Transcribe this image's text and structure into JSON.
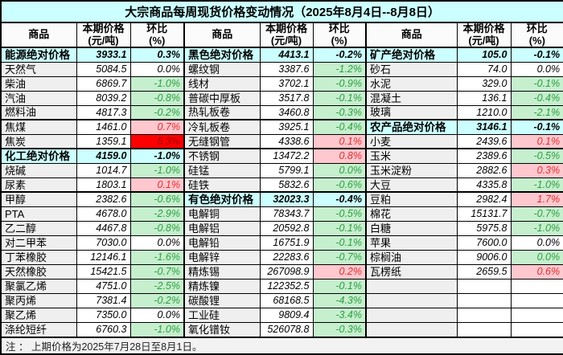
{
  "title": "大宗商品每周现货价格变动情况（2025年8月4日--8月8日）",
  "headers": {
    "commodity": "商品",
    "price": "本期价格\n(元/吨)",
    "change": "环比\n(%)"
  },
  "footer": {
    "note": "注 ： 上期价格为2025年7月28日至8月1日。"
  },
  "colors": {
    "title_bg": "#CCFFFF",
    "category_row_bg": "#CCFFFF",
    "name_cell_bg": "#EFEFEF",
    "decline_bg": "#C6EFCE",
    "decline_text": "#2E9E40",
    "rise_bg": "#FFC7CE",
    "rise_text": "#E03030",
    "surge_bg": "#FF0000",
    "surge_text": "#9C0006"
  },
  "groups": [
    {
      "name": "left",
      "rows": [
        {
          "name": "能源绝对价格",
          "price": "3933.1",
          "change": "0.3%",
          "type": "category"
        },
        {
          "name": "天然气",
          "price": "5084.5",
          "change": "0.0%",
          "type": "item",
          "trend": "flat"
        },
        {
          "name": "柴油",
          "price": "6869.7",
          "change": "-1.0%",
          "type": "item",
          "trend": "down"
        },
        {
          "name": "汽油",
          "price": "8039.2",
          "change": "-0.8%",
          "type": "item",
          "trend": "down"
        },
        {
          "name": "燃料油",
          "price": "4817.3",
          "change": "-0.2%",
          "type": "item",
          "trend": "down"
        },
        {
          "name": "焦煤",
          "price": "1461.0",
          "change": "0.7%",
          "type": "item",
          "trend": "up"
        },
        {
          "name": "焦炭",
          "price": "1359.1",
          "change": "5.3%",
          "type": "item",
          "trend": "surge"
        },
        {
          "name": "化工绝对价格",
          "price": "4159.0",
          "change": "-1.0%",
          "type": "category"
        },
        {
          "name": "烧碱",
          "price": "1014.7",
          "change": "-1.0%",
          "type": "item",
          "trend": "down"
        },
        {
          "name": "尿素",
          "price": "1803.1",
          "change": "0.1%",
          "type": "item",
          "trend": "up"
        },
        {
          "name": "甲醇",
          "price": "2382.6",
          "change": "-0.6%",
          "type": "item",
          "trend": "down"
        },
        {
          "name": "PTA",
          "price": "4678.0",
          "change": "-2.9%",
          "type": "item",
          "trend": "down"
        },
        {
          "name": "乙二醇",
          "price": "4467.8",
          "change": "-0.8%",
          "type": "item",
          "trend": "down"
        },
        {
          "name": "对二甲苯",
          "price": "7030.0",
          "change": "0.0%",
          "type": "item",
          "trend": "flat"
        },
        {
          "name": "丁苯橡胶",
          "price": "12146.1",
          "change": "-1.6%",
          "type": "item",
          "trend": "down"
        },
        {
          "name": "天然橡胶",
          "price": "15421.5",
          "change": "-0.7%",
          "type": "item",
          "trend": "down"
        },
        {
          "name": "聚氯乙烯",
          "price": "4751.0",
          "change": "-2.5%",
          "type": "item",
          "trend": "down"
        },
        {
          "name": "聚丙烯",
          "price": "7381.4",
          "change": "-0.2%",
          "type": "item",
          "trend": "down"
        },
        {
          "name": "聚乙烯",
          "price": "7350.0",
          "change": "0.0%",
          "type": "item",
          "trend": "flat"
        },
        {
          "name": "涤纶短纤",
          "price": "6760.3",
          "change": "-1.0%",
          "type": "item",
          "trend": "down"
        }
      ]
    },
    {
      "name": "middle",
      "rows": [
        {
          "name": "黑色绝对价格",
          "price": "4413.1",
          "change": "-0.2%",
          "type": "category"
        },
        {
          "name": "螺纹钢",
          "price": "3387.6",
          "change": "-1.2%",
          "type": "item",
          "trend": "down"
        },
        {
          "name": "线材",
          "price": "3702.1",
          "change": "-0.9%",
          "type": "item",
          "trend": "down"
        },
        {
          "name": "普碳中厚板",
          "price": "3517.8",
          "change": "-0.1%",
          "type": "item",
          "trend": "down"
        },
        {
          "name": "热轧板卷",
          "price": "3460.8",
          "change": "-0.3%",
          "type": "item",
          "trend": "down"
        },
        {
          "name": "冷轧板卷",
          "price": "3925.1",
          "change": "-0.4%",
          "type": "item",
          "trend": "down"
        },
        {
          "name": "无缝钢管",
          "price": "4338.6",
          "change": "0.1%",
          "type": "item",
          "trend": "up"
        },
        {
          "name": "不锈钢",
          "price": "13472.2",
          "change": "0.8%",
          "type": "item",
          "trend": "up"
        },
        {
          "name": "硅锰",
          "price": "5799.1",
          "change": "0.0%",
          "type": "item",
          "trend": "flat-green"
        },
        {
          "name": "硅铁",
          "price": "5832.6",
          "change": "-0.6%",
          "type": "item",
          "trend": "down"
        },
        {
          "name": "有色绝对价格",
          "price": "32023.3",
          "change": "-0.4%",
          "type": "category"
        },
        {
          "name": "电解铜",
          "price": "78343.7",
          "change": "-0.5%",
          "type": "item",
          "trend": "down"
        },
        {
          "name": "电解铝",
          "price": "20592.8",
          "change": "-0.1%",
          "type": "item",
          "trend": "down"
        },
        {
          "name": "电解铅",
          "price": "16751.9",
          "change": "-0.1%",
          "type": "item",
          "trend": "down"
        },
        {
          "name": "电解锌",
          "price": "22283.6",
          "change": "-0.7%",
          "type": "item",
          "trend": "down"
        },
        {
          "name": "精炼锡",
          "price": "267098.9",
          "change": "0.2%",
          "type": "item",
          "trend": "up"
        },
        {
          "name": "精炼镍",
          "price": "122352.5",
          "change": "-0.1%",
          "type": "item",
          "trend": "down"
        },
        {
          "name": "碳酸锂",
          "price": "68168.5",
          "change": "-4.3%",
          "type": "item",
          "trend": "down"
        },
        {
          "name": "工业硅",
          "price": "9809.4",
          "change": "-3.4%",
          "type": "item",
          "trend": "down"
        },
        {
          "name": "氧化镨钕",
          "price": "526078.8",
          "change": "-0.3%",
          "type": "item",
          "trend": "down"
        }
      ]
    },
    {
      "name": "right",
      "rows": [
        {
          "name": "矿产绝对价格",
          "price": "105.0",
          "change": "-0.1%",
          "type": "category"
        },
        {
          "name": "砂石",
          "price": "74.0",
          "change": "0.0%",
          "type": "item",
          "trend": "flat"
        },
        {
          "name": "水泥",
          "price": "329.0",
          "change": "-0.1%",
          "type": "item",
          "trend": "down"
        },
        {
          "name": "混凝土",
          "price": "136.1",
          "change": "-0.4%",
          "type": "item",
          "trend": "down"
        },
        {
          "name": "玻璃",
          "price": "1210.0",
          "change": "-2.1%",
          "type": "item",
          "trend": "down"
        },
        {
          "name": "农产品绝对价格",
          "price": "3146.1",
          "change": "-0.1%",
          "type": "category"
        },
        {
          "name": "小麦",
          "price": "2439.6",
          "change": "0.1%",
          "type": "item",
          "trend": "up"
        },
        {
          "name": "玉米",
          "price": "2389.6",
          "change": "-0.5%",
          "type": "item",
          "trend": "down"
        },
        {
          "name": "玉米淀粉",
          "price": "2882.6",
          "change": "0.3%",
          "type": "item",
          "trend": "up"
        },
        {
          "name": "大豆",
          "price": "4335.8",
          "change": "-1.0%",
          "type": "item",
          "trend": "down"
        },
        {
          "name": "豆粕",
          "price": "2982.4",
          "change": "1.7%",
          "type": "item",
          "trend": "up"
        },
        {
          "name": "棉花",
          "price": "15131.7",
          "change": "-0.7%",
          "type": "item",
          "trend": "down"
        },
        {
          "name": "白糖",
          "price": "5975.8",
          "change": "-1.0%",
          "type": "item",
          "trend": "down"
        },
        {
          "name": "苹果",
          "price": "7600.0",
          "change": "0.0%",
          "type": "item",
          "trend": "flat"
        },
        {
          "name": "棕榈油",
          "price": "9006.0",
          "change": "0.0%",
          "type": "item",
          "trend": "flat-green"
        },
        {
          "name": "瓦楞纸",
          "price": "2659.5",
          "change": "0.6%",
          "type": "item",
          "trend": "up"
        },
        {
          "name": "",
          "price": "",
          "change": "",
          "type": "empty"
        },
        {
          "name": "",
          "price": "",
          "change": "",
          "type": "empty"
        },
        {
          "name": "",
          "price": "",
          "change": "",
          "type": "empty"
        },
        {
          "name": "",
          "price": "",
          "change": "",
          "type": "empty"
        }
      ]
    }
  ]
}
